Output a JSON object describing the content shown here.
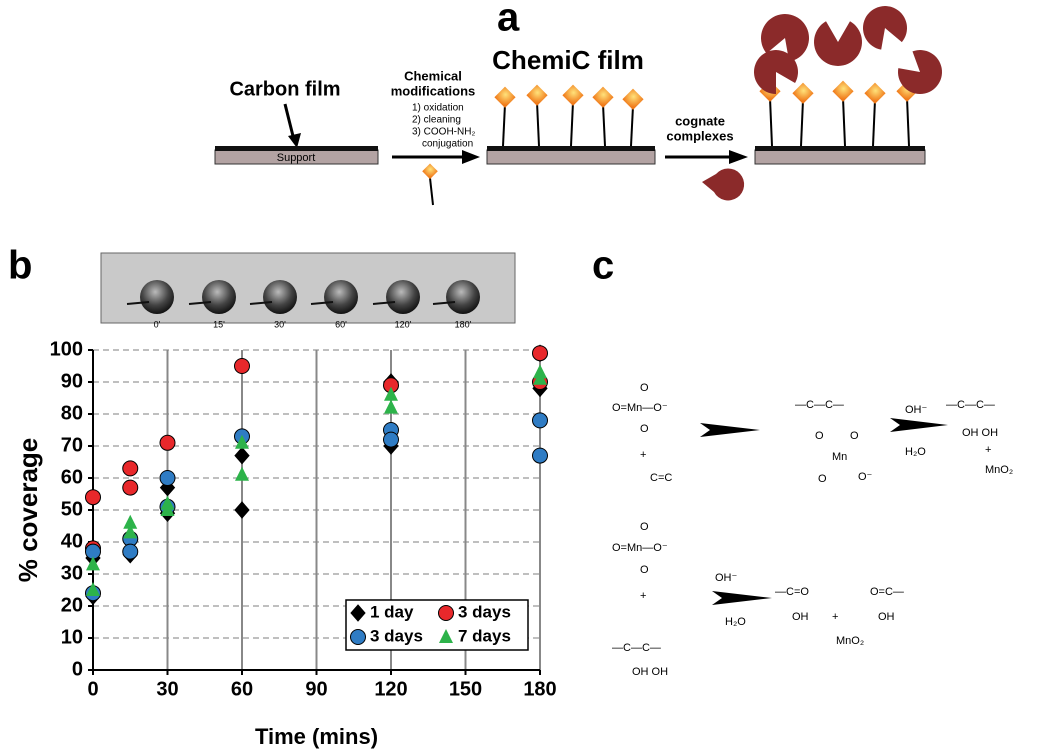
{
  "panels": {
    "a": {
      "letter": "a",
      "carbon": "Carbon film",
      "support": "Support",
      "chem1": "Chemical",
      "chem2": "modifications",
      "steps": [
        "1) oxidation",
        "2) cleaning",
        "3) COOH-NH₂",
        "conjugation"
      ],
      "chemic": "ChemiC film",
      "cognate1": "cognate",
      "cognate2": "complexes"
    },
    "b": {
      "letter": "b",
      "frames": [
        "0'",
        "15'",
        "30'",
        "60'",
        "120'",
        "180'"
      ]
    },
    "c": {
      "letter": "c",
      "labels": [
        "O",
        "O=Mn—O⁻",
        "O",
        "+",
        "C=C",
        "—C—C—",
        "O",
        "O",
        "Mn",
        "O",
        "O⁻",
        "OH⁻",
        "H₂O",
        "—C—C—",
        "OH  OH",
        "+",
        "MnO₂",
        "O",
        "O=Mn—O⁻",
        "O",
        "+",
        "—C—C—",
        "OH  OH",
        "OH⁻",
        "H₂O",
        "—C=O",
        "OH",
        "+",
        "MnO₂",
        "O=C—",
        "OH"
      ]
    }
  },
  "chart_data": {
    "type": "scatter",
    "xlabel": "Time (mins)",
    "ylabel": "% coverage",
    "xlim": [
      0,
      180
    ],
    "xticks": [
      0,
      30,
      60,
      90,
      120,
      150,
      180
    ],
    "ylim": [
      0,
      100
    ],
    "yticks": [
      0,
      10,
      20,
      30,
      40,
      50,
      60,
      70,
      80,
      90,
      100
    ],
    "grid": true,
    "legend": "lower right",
    "series": [
      {
        "name": "1 day",
        "color": "#000000",
        "marker": "diamond",
        "x": [
          0,
          0,
          15,
          15,
          30,
          30,
          60,
          60,
          120,
          120,
          180,
          180
        ],
        "y": [
          35,
          23,
          36,
          41,
          49,
          57,
          50,
          67,
          70,
          90,
          88,
          99
        ]
      },
      {
        "name": "3 days",
        "color": "#e8282b",
        "marker": "circle",
        "x": [
          0,
          0,
          15,
          15,
          30,
          60,
          120,
          180,
          180
        ],
        "y": [
          54,
          38,
          63,
          57,
          71,
          95,
          89,
          99,
          90
        ]
      },
      {
        "name": "3 days",
        "color": "#2f7cc4",
        "marker": "circle",
        "x": [
          0,
          0,
          15,
          15,
          30,
          30,
          60,
          120,
          120,
          180,
          180
        ],
        "y": [
          37,
          24,
          41,
          37,
          60,
          51,
          73,
          75,
          72,
          78,
          67
        ]
      },
      {
        "name": "7 days",
        "color": "#2db34a",
        "marker": "triangle",
        "x": [
          0,
          0,
          15,
          15,
          30,
          30,
          60,
          60,
          120,
          120,
          180,
          180
        ],
        "y": [
          33,
          25,
          46,
          43,
          52,
          50,
          71,
          61,
          86,
          82,
          93,
          91
        ]
      }
    ]
  }
}
